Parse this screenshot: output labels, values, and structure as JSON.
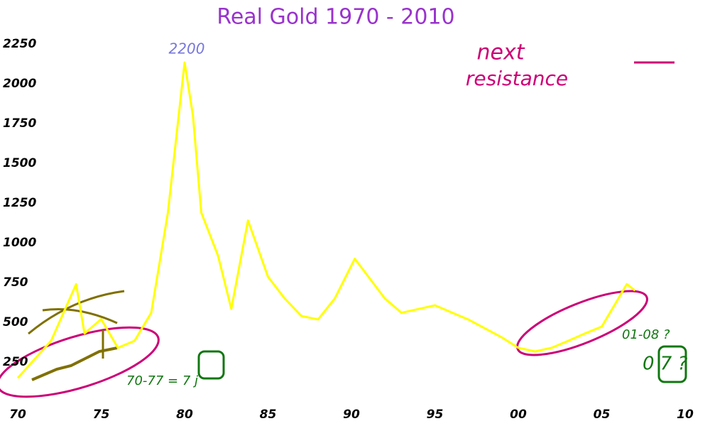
{
  "chart_data": {
    "type": "line",
    "title": "Real Gold 1970 - 2010",
    "x": [
      1970,
      1972,
      1973.5,
      1974,
      1975,
      1976,
      1977,
      1978,
      1979,
      1980,
      1980.5,
      1981,
      1982,
      1982.8,
      1983.8,
      1985,
      1986,
      1987,
      1988,
      1989,
      1990.2,
      1992,
      1993,
      1995,
      1997,
      1999,
      2000,
      2001,
      2002,
      2003,
      2004,
      2005,
      2006,
      2006.5,
      2007
    ],
    "series": [
      {
        "color": "#ffff00",
        "values": [
          150,
          384,
          740,
          430,
          520,
          340,
          384,
          560,
          1190,
          2134,
          1800,
          1190,
          920,
          585,
          1140,
          786,
          650,
          540,
          518,
          650,
          900,
          650,
          560,
          607,
          518,
          406,
          340,
          317,
          340,
          384,
          430,
          473,
          650,
          740,
          700
        ]
      }
    ],
    "xlim": [
      1970,
      2010
    ],
    "xticks": [
      {
        "value": 1970,
        "label": "70"
      },
      {
        "value": 1975,
        "label": "75"
      },
      {
        "value": 1980,
        "label": "80"
      },
      {
        "value": 1985,
        "label": "85"
      },
      {
        "value": 1990,
        "label": "90"
      },
      {
        "value": 1995,
        "label": "95"
      },
      {
        "value": 2000,
        "label": "00"
      },
      {
        "value": 2005,
        "label": "05"
      },
      {
        "value": 2010,
        "label": "10"
      }
    ],
    "ylim": [
      0,
      2250
    ],
    "yticks": [
      250,
      500,
      750,
      1000,
      1250,
      1500,
      1750,
      2000,
      2250
    ],
    "annotations": [
      "2200",
      "next",
      "resistance",
      "70-77 = 7 j",
      "01-08 ?",
      "0 7 ?"
    ]
  }
}
